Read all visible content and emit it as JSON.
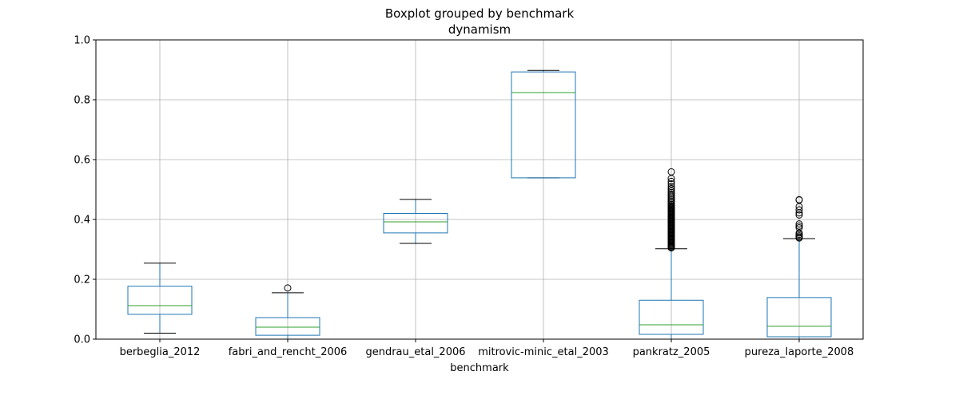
{
  "chart_data": {
    "type": "boxplot",
    "title": "Boxplot grouped by benchmark",
    "subtitle": "dynamism",
    "xlabel": "benchmark",
    "ylabel": "",
    "ylim": [
      0,
      1.0
    ],
    "yticks": [
      "0.0",
      "0.2",
      "0.4",
      "0.6",
      "0.8",
      "1.0"
    ],
    "grid": true,
    "colors": {
      "box": "#1f77b4",
      "median": "#2ca02c",
      "whisker_cap": "#000000",
      "grid": "#b0b0b0",
      "outlier": "#000000"
    },
    "categories": [
      "berbeglia_2012",
      "fabri_and_rencht_2006",
      "gendrau_etal_2006",
      "mitrovic-minic_etal_2003",
      "pankratz_2005",
      "pureza_laporte_2008"
    ],
    "boxes": [
      {
        "category": "berbeglia_2012",
        "whisker_low": 0.02,
        "q1": 0.083,
        "median": 0.112,
        "q3": 0.177,
        "whisker_high": 0.254,
        "outliers": []
      },
      {
        "category": "fabri_and_rencht_2006",
        "whisker_low": 0.0,
        "q1": 0.013,
        "median": 0.04,
        "q3": 0.072,
        "whisker_high": 0.155,
        "outliers": [
          0.171
        ]
      },
      {
        "category": "gendrau_etal_2006",
        "whisker_low": 0.32,
        "q1": 0.355,
        "median": 0.392,
        "q3": 0.42,
        "whisker_high": 0.467,
        "outliers": []
      },
      {
        "category": "mitrovic-minic_etal_2003",
        "whisker_low": 0.539,
        "q1": 0.539,
        "median": 0.824,
        "q3": 0.893,
        "whisker_high": 0.898,
        "outliers": []
      },
      {
        "category": "pankratz_2005",
        "whisker_low": 0.0,
        "q1": 0.016,
        "median": 0.048,
        "q3": 0.13,
        "whisker_high": 0.302,
        "outliers": [
          0.305,
          0.308,
          0.311,
          0.314,
          0.317,
          0.32,
          0.323,
          0.326,
          0.329,
          0.332,
          0.335,
          0.338,
          0.341,
          0.344,
          0.347,
          0.35,
          0.353,
          0.356,
          0.359,
          0.362,
          0.365,
          0.368,
          0.371,
          0.374,
          0.377,
          0.38,
          0.383,
          0.386,
          0.389,
          0.392,
          0.395,
          0.398,
          0.401,
          0.404,
          0.407,
          0.41,
          0.413,
          0.416,
          0.419,
          0.422,
          0.425,
          0.428,
          0.431,
          0.434,
          0.437,
          0.44,
          0.443,
          0.446,
          0.45,
          0.455,
          0.46,
          0.465,
          0.47,
          0.475,
          0.48,
          0.485,
          0.49,
          0.496,
          0.503,
          0.51,
          0.519,
          0.527,
          0.537,
          0.559
        ]
      },
      {
        "category": "pureza_laporte_2008",
        "whisker_low": 0.0,
        "q1": 0.008,
        "median": 0.043,
        "q3": 0.139,
        "whisker_high": 0.336,
        "outliers": [
          0.338,
          0.341,
          0.345,
          0.35,
          0.355,
          0.372,
          0.378,
          0.385,
          0.415,
          0.422,
          0.432,
          0.443,
          0.465,
          0.466
        ]
      }
    ]
  }
}
